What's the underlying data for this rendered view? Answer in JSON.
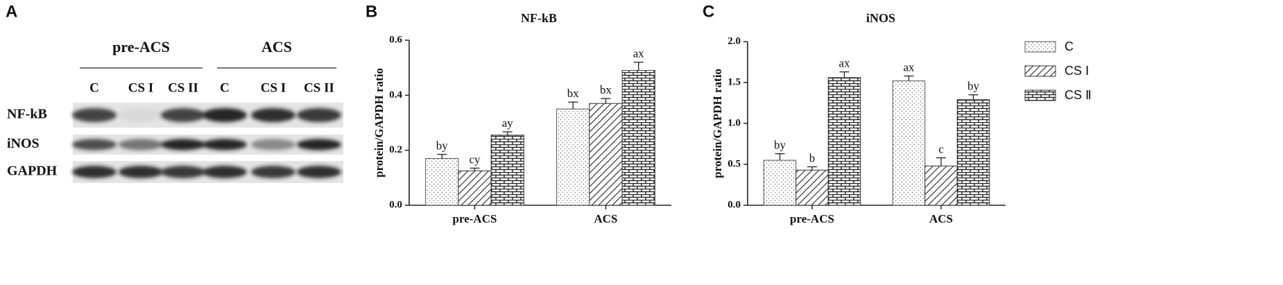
{
  "panel_a": {
    "panel": "A",
    "groups": [
      "pre-ACS",
      "ACS"
    ],
    "lanes": [
      "C",
      "CS I",
      "CS II",
      "C",
      "CS I",
      "CS II"
    ],
    "rows": [
      "NF-kB",
      "iNOS",
      "GAPDH"
    ]
  },
  "chart_data": [
    {
      "type": "bar",
      "panel": "B",
      "title": "NF-kB",
      "y_label": "protein/GAPDH ratio",
      "categories": [
        "pre-ACS",
        "ACS"
      ],
      "ylim": [
        0,
        0.6
      ],
      "yticks": [
        {
          "value": 0,
          "label": "0.0"
        },
        0.2,
        0.4,
        0.6
      ],
      "series": [
        {
          "pattern": "dots",
          "color": "#555555",
          "values": [
            0.17,
            0.35
          ],
          "errors": [
            0.015,
            0.025
          ],
          "labels": [
            "by",
            "bx"
          ]
        },
        {
          "pattern": "hatch",
          "color": "#333333",
          "values": [
            0.125,
            0.37
          ],
          "errors": [
            0.01,
            0.018
          ],
          "labels": [
            "cy",
            "bx"
          ]
        },
        {
          "pattern": "brick",
          "color": "#333333",
          "values": [
            0.255,
            0.49
          ],
          "errors": [
            0.012,
            0.03
          ],
          "labels": [
            "ay",
            "ax"
          ]
        }
      ],
      "legend": false
    },
    {
      "type": "bar",
      "panel": "C",
      "title": "iNOS",
      "y_label": "protein/GAPDH ratio",
      "categories": [
        "pre-ACS",
        "ACS"
      ],
      "ylim": [
        0,
        2.0
      ],
      "yticks": [
        {
          "value": 0,
          "label": "0.0"
        },
        0.5,
        {
          "value": 1,
          "label": "1.0"
        },
        1.5,
        {
          "value": 2,
          "label": "2.0"
        }
      ],
      "series": [
        {
          "name": "C",
          "pattern": "dots",
          "color": "#555555",
          "values": [
            0.55,
            1.52
          ],
          "errors": [
            0.08,
            0.06
          ],
          "labels": [
            "by",
            "ax"
          ]
        },
        {
          "name": "CS Ⅰ",
          "pattern": "hatch",
          "color": "#333333",
          "values": [
            0.43,
            0.48
          ],
          "errors": [
            0.04,
            0.1
          ],
          "labels": [
            "b",
            "c"
          ]
        },
        {
          "name": "CS Ⅱ",
          "pattern": "brick",
          "color": "#333333",
          "values": [
            1.56,
            1.29
          ],
          "errors": [
            0.07,
            0.06
          ],
          "labels": [
            "ax",
            "by"
          ]
        }
      ],
      "legend": true
    }
  ]
}
